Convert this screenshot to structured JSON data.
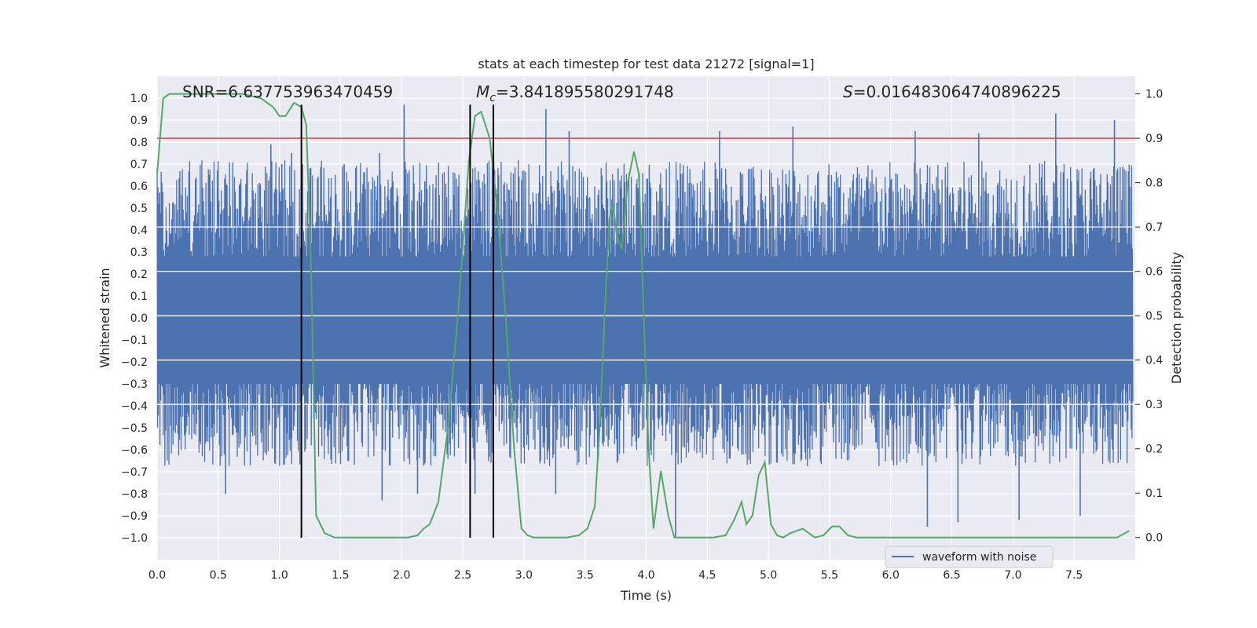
{
  "chart_data": {
    "type": "line",
    "title": "stats at each timestep for test data 21272 [signal=1]",
    "xlabel": "Time (s)",
    "ylabel": "Whitened strain",
    "ylabel_right": "Detection probability",
    "xlim": [
      0.0,
      8.0
    ],
    "ylim": [
      -1.1,
      1.1
    ],
    "ylim_right": [
      -0.05,
      1.04
    ],
    "x_ticks": [
      0.0,
      0.5,
      1.0,
      1.5,
      2.0,
      2.5,
      3.0,
      3.5,
      4.0,
      4.5,
      5.0,
      5.5,
      6.0,
      6.5,
      7.0,
      7.5
    ],
    "x_tick_labels": [
      "0.0",
      "0.5",
      "1.0",
      "1.5",
      "2.0",
      "2.5",
      "3.0",
      "3.5",
      "4.0",
      "4.5",
      "5.0",
      "5.5",
      "6.0",
      "6.5",
      "7.0",
      "7.5"
    ],
    "y_ticks": [
      1.0,
      0.9,
      0.8,
      0.7,
      0.6,
      0.5,
      0.4,
      0.3,
      0.2,
      0.1,
      0.0,
      -0.1,
      -0.2,
      -0.3,
      -0.4,
      -0.5,
      -0.6,
      -0.7,
      -0.8,
      -0.9,
      -1.0
    ],
    "y_tick_labels": [
      "1.0",
      "0.9",
      "0.8",
      "0.7",
      "0.6",
      "0.5",
      "0.4",
      "0.3",
      "0.2",
      "0.1",
      "0.0",
      "−0.1",
      "−0.2",
      "−0.3",
      "−0.4",
      "−0.5",
      "−0.6",
      "−0.7",
      "−0.8",
      "−0.9",
      "−1.0"
    ],
    "y_right_ticks": [
      1.0,
      0.9,
      0.8,
      0.7,
      0.6,
      0.5,
      0.4,
      0.3,
      0.2,
      0.1,
      0.0
    ],
    "y_right_tick_labels": [
      "1.0",
      "0.9",
      "0.8",
      "0.7",
      "0.6",
      "0.5",
      "0.4",
      "0.3",
      "0.2",
      "0.1",
      "0.0"
    ],
    "right_gridlines": [
      0.7,
      0.6,
      0.5,
      0.4,
      0.3
    ],
    "annotations": {
      "snr": "SNR=6.637753963470459",
      "mc_symbol": "M",
      "mc_subscript": "c",
      "mc_value": "=3.841895580291748",
      "s_symbol": "S",
      "s_value": "=0.016483064740896225"
    },
    "threshold_right": 0.9,
    "vertical_lines_x": [
      1.18,
      2.56,
      2.75
    ],
    "vertical_lines_ymin": -1.0,
    "vertical_lines_ymax": 0.97,
    "series": [
      {
        "name": "waveform with noise",
        "axis": "left",
        "color": "#4c72b0",
        "note": "dense noise waveform; envelope mostly within about -0.55 to 0.6, spikes up to about 0.97 and down to about -1.0",
        "envelope_upper": 0.55,
        "envelope_lower": -0.5,
        "spikes": [
          [
            0.02,
            0.57
          ],
          [
            0.56,
            0.62
          ],
          [
            0.93,
            0.79
          ],
          [
            1.02,
            0.7
          ],
          [
            1.1,
            0.75
          ],
          [
            1.25,
            0.68
          ],
          [
            1.53,
            0.7
          ],
          [
            1.82,
            0.75
          ],
          [
            2.02,
            0.97
          ],
          [
            2.2,
            0.62
          ],
          [
            2.75,
            0.68
          ],
          [
            3.18,
            0.95
          ],
          [
            3.37,
            0.85
          ],
          [
            3.77,
            0.68
          ],
          [
            4.6,
            0.85
          ],
          [
            5.2,
            0.87
          ],
          [
            6.2,
            0.85
          ],
          [
            6.72,
            0.84
          ],
          [
            7.35,
            0.93
          ],
          [
            7.83,
            0.9
          ],
          [
            0.56,
            -0.8
          ],
          [
            1.84,
            -0.83
          ],
          [
            2.13,
            -0.8
          ],
          [
            2.6,
            -0.8
          ],
          [
            3.26,
            -0.8
          ],
          [
            4.24,
            -1.0
          ],
          [
            6.3,
            -0.95
          ],
          [
            6.55,
            -0.93
          ],
          [
            7.05,
            -0.92
          ],
          [
            7.55,
            -0.9
          ]
        ]
      },
      {
        "name": "detection probability",
        "axis": "right",
        "color": "#55a868",
        "x": [
          0.0,
          0.05,
          0.1,
          0.15,
          0.2,
          0.3,
          0.5,
          0.7,
          0.85,
          0.95,
          1.0,
          1.05,
          1.12,
          1.18,
          1.22,
          1.26,
          1.3,
          1.37,
          1.45,
          1.55,
          1.65,
          1.75,
          1.85,
          1.95,
          2.05,
          2.13,
          2.18,
          2.23,
          2.3,
          2.38,
          2.46,
          2.55,
          2.6,
          2.65,
          2.72,
          2.78,
          2.85,
          2.92,
          2.98,
          3.03,
          3.08,
          3.15,
          3.25,
          3.35,
          3.45,
          3.52,
          3.58,
          3.62,
          3.66,
          3.7,
          3.73,
          3.76,
          3.8,
          3.85,
          3.9,
          3.94,
          3.98,
          4.02,
          4.06,
          4.12,
          4.18,
          4.23,
          4.28,
          4.35,
          4.45,
          4.55,
          4.65,
          4.72,
          4.78,
          4.82,
          4.87,
          4.92,
          4.97,
          5.02,
          5.07,
          5.12,
          5.18,
          5.28,
          5.38,
          5.45,
          5.52,
          5.58,
          5.65,
          5.72,
          5.8,
          5.9,
          6.0,
          6.2,
          6.5,
          6.8,
          7.0,
          7.3,
          7.5,
          7.7,
          7.85,
          7.95
        ],
        "y": [
          0.82,
          0.99,
          1.0,
          1.0,
          1.0,
          1.0,
          1.0,
          1.0,
          0.99,
          0.97,
          0.95,
          0.95,
          0.98,
          0.97,
          0.93,
          0.6,
          0.05,
          0.01,
          0.0,
          0.0,
          0.0,
          0.0,
          0.0,
          0.0,
          0.0,
          0.005,
          0.02,
          0.03,
          0.08,
          0.25,
          0.5,
          0.85,
          0.95,
          0.96,
          0.9,
          0.75,
          0.5,
          0.2,
          0.02,
          0.005,
          0.0,
          0.0,
          0.0,
          0.0,
          0.005,
          0.02,
          0.07,
          0.25,
          0.5,
          0.72,
          0.75,
          0.68,
          0.65,
          0.8,
          0.87,
          0.82,
          0.5,
          0.2,
          0.02,
          0.15,
          0.05,
          0.0,
          0.0,
          0.0,
          0.0,
          0.0,
          0.005,
          0.04,
          0.08,
          0.03,
          0.05,
          0.14,
          0.17,
          0.03,
          0.005,
          0.0,
          0.01,
          0.02,
          0.0,
          0.005,
          0.025,
          0.025,
          0.005,
          0.0,
          0.0,
          0.0,
          0.0,
          0.0,
          0.0,
          0.0,
          0.0,
          0.0,
          0.0,
          0.0,
          0.0,
          0.015
        ]
      },
      {
        "name": "threshold",
        "axis": "right",
        "color": "#c44e52",
        "constant": 0.9
      }
    ],
    "legend": {
      "placement": "lower-right",
      "entries": [
        {
          "label": "waveform with noise",
          "color": "#4c72b0"
        }
      ]
    },
    "colors": {
      "plot_background": "#eaeaf2",
      "grid": "#ffffff",
      "vertical_lines": "#000000",
      "text": "#262626"
    }
  }
}
